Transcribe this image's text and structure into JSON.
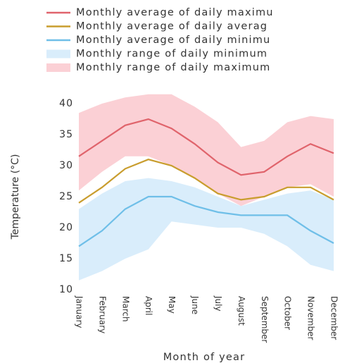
{
  "chart_data": {
    "type": "line",
    "x_label": "Month of year",
    "y_label": "Temperature (°C)",
    "categories": [
      "January",
      "February",
      "March",
      "April",
      "May",
      "June",
      "July",
      "August",
      "September",
      "October",
      "November",
      "December"
    ],
    "ylim": [
      10,
      40
    ],
    "yticks": [
      10,
      15,
      20,
      25,
      30,
      35,
      40
    ],
    "grid": false,
    "bands": [
      {
        "name": "Monthly range of daily maximum",
        "color": "#f7a1ab",
        "low": [
          26,
          29,
          31.5,
          31.5,
          30,
          28,
          25.5,
          23.5,
          25,
          26.5,
          27,
          25
        ],
        "high": [
          38.5,
          40,
          41,
          41.5,
          41.5,
          39.5,
          37,
          33,
          34,
          37,
          38,
          37.5
        ]
      },
      {
        "name": "Monthly range of daily minimum",
        "color": "#b3dcf7",
        "low": [
          11.5,
          13,
          15,
          16.5,
          21,
          20.5,
          20,
          20,
          19,
          17,
          14,
          13
        ],
        "high": [
          23,
          25.5,
          27.5,
          28,
          27.5,
          26.5,
          25,
          23.5,
          24.5,
          25.5,
          26,
          24.5
        ]
      }
    ],
    "series": [
      {
        "name": "Monthly average of daily maximu",
        "color": "#e0646c",
        "values": [
          31.5,
          34,
          36.5,
          37.5,
          36,
          33.5,
          30.5,
          28.5,
          29,
          31.5,
          33.5,
          32
        ]
      },
      {
        "name": "Monthly average of daily averag",
        "color": "#c99d2e",
        "values": [
          24,
          26.5,
          29.5,
          31,
          30,
          28,
          25.5,
          24.5,
          25,
          26.5,
          26.5,
          24.5
        ]
      },
      {
        "name": "Monthly average of daily minimu",
        "color": "#6fbfe8",
        "values": [
          17,
          19.5,
          23,
          25,
          25,
          23.5,
          22.5,
          22,
          22,
          22,
          19.5,
          17.5
        ]
      }
    ]
  }
}
